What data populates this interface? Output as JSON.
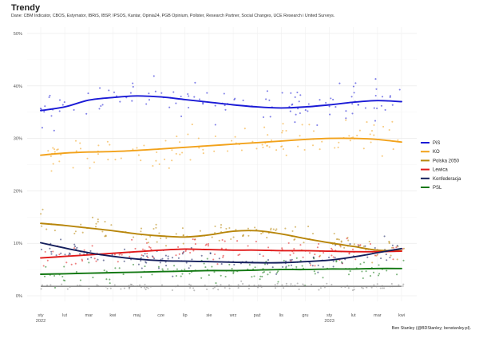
{
  "header": {
    "title": "Trendy",
    "subtitle": "Dane: CBM Indicator, CBOS, Estymator, IBRiS, IBSP, IPSOS, Kantar, Opinia24, PGB Opinium, Pollster, Research Partner, Social Changes, UCE Research i United Surveys."
  },
  "caption": "Ben Stanley (@BDStanley; benstanley.pl).",
  "chart_data": {
    "type": "line",
    "title": "Trendy",
    "xlabel": "",
    "ylabel": "",
    "ylim": [
      0,
      50
    ],
    "xlim": [
      0,
      15.5
    ],
    "grid": true,
    "legend_position": "right",
    "y_ticks": [
      {
        "value": 0,
        "label": "0%"
      },
      {
        "value": 10,
        "label": "10%"
      },
      {
        "value": 20,
        "label": "20%"
      },
      {
        "value": 30,
        "label": "30%"
      },
      {
        "value": 40,
        "label": "40%"
      },
      {
        "value": 50,
        "label": "50%"
      }
    ],
    "x_ticks": [
      {
        "value": 0,
        "label": "sty",
        "sublabel": "2022"
      },
      {
        "value": 1,
        "label": "lut",
        "sublabel": ""
      },
      {
        "value": 2,
        "label": "mar",
        "sublabel": ""
      },
      {
        "value": 3,
        "label": "kwi",
        "sublabel": ""
      },
      {
        "value": 4,
        "label": "maj",
        "sublabel": ""
      },
      {
        "value": 5,
        "label": "cze",
        "sublabel": ""
      },
      {
        "value": 6,
        "label": "lip",
        "sublabel": ""
      },
      {
        "value": 7,
        "label": "sie",
        "sublabel": ""
      },
      {
        "value": 8,
        "label": "wrz",
        "sublabel": ""
      },
      {
        "value": 9,
        "label": "paź",
        "sublabel": ""
      },
      {
        "value": 10,
        "label": "lis",
        "sublabel": ""
      },
      {
        "value": 11,
        "label": "gru",
        "sublabel": ""
      },
      {
        "value": 12,
        "label": "sty",
        "sublabel": "2023"
      },
      {
        "value": 13,
        "label": "lut",
        "sublabel": ""
      },
      {
        "value": 14,
        "label": "mar",
        "sublabel": ""
      },
      {
        "value": 15,
        "label": "kwi",
        "sublabel": ""
      }
    ],
    "series": [
      {
        "name": "PiS",
        "color": "#1a1ad6",
        "x": [
          0,
          1,
          2,
          3,
          4,
          5,
          6,
          7,
          8,
          9,
          10,
          11,
          12,
          13,
          14,
          15
        ],
        "values": [
          35.3,
          36,
          37.3,
          37.8,
          38.1,
          37.9,
          37.4,
          36.9,
          36.4,
          36,
          35.8,
          36,
          36.4,
          36.9,
          37.2,
          37
        ]
      },
      {
        "name": "KO",
        "color": "#f2a21b",
        "x": [
          0,
          1,
          2,
          3,
          4,
          5,
          6,
          7,
          8,
          9,
          10,
          11,
          12,
          13,
          14,
          15
        ],
        "values": [
          26.8,
          27.2,
          27.4,
          27.5,
          27.7,
          28,
          28.3,
          28.6,
          28.9,
          29.2,
          29.5,
          29.8,
          30,
          30,
          29.8,
          29.3
        ]
      },
      {
        "name": "Polska 2050",
        "color": "#b8860b",
        "x": [
          0,
          1,
          2,
          3,
          4,
          5,
          6,
          7,
          8,
          9,
          10,
          11,
          12,
          13,
          14,
          15
        ],
        "values": [
          13.8,
          13.4,
          12.9,
          12.4,
          11.8,
          11.4,
          11.2,
          11.6,
          12.3,
          12.4,
          11.8,
          10.9,
          10.1,
          9.4,
          8.7,
          8.6
        ]
      },
      {
        "name": "Lewica",
        "color": "#e01a1a",
        "x": [
          0,
          1,
          2,
          3,
          4,
          5,
          6,
          7,
          8,
          9,
          10,
          11,
          12,
          13,
          14,
          15
        ],
        "values": [
          7.2,
          7.5,
          7.8,
          8.1,
          8.4,
          8.7,
          8.9,
          8.8,
          8.7,
          8.7,
          8.6,
          8.6,
          8.5,
          8.4,
          8.4,
          8.5
        ]
      },
      {
        "name": "Konfederacja",
        "color": "#141e5c",
        "x": [
          0,
          1,
          2,
          3,
          4,
          5,
          6,
          7,
          8,
          9,
          10,
          11,
          12,
          13,
          14,
          15
        ],
        "values": [
          10.1,
          9.1,
          8.2,
          7.5,
          7,
          6.7,
          6.6,
          6.5,
          6.4,
          6.3,
          6.3,
          6.5,
          6.8,
          7.4,
          8.2,
          9
        ]
      },
      {
        "name": "PSL",
        "color": "#127812",
        "x": [
          0,
          1,
          2,
          3,
          4,
          5,
          6,
          7,
          8,
          9,
          10,
          11,
          12,
          13,
          14,
          15
        ],
        "values": [
          4.1,
          4.2,
          4.3,
          4.4,
          4.5,
          4.6,
          4.7,
          4.8,
          4.8,
          4.9,
          5,
          5,
          5.1,
          5.1,
          5.2,
          5.2
        ]
      }
    ],
    "other_series": {
      "color": "#8c8c8c",
      "x": [
        0,
        15
      ],
      "values": [
        1.8,
        1.8
      ]
    }
  }
}
